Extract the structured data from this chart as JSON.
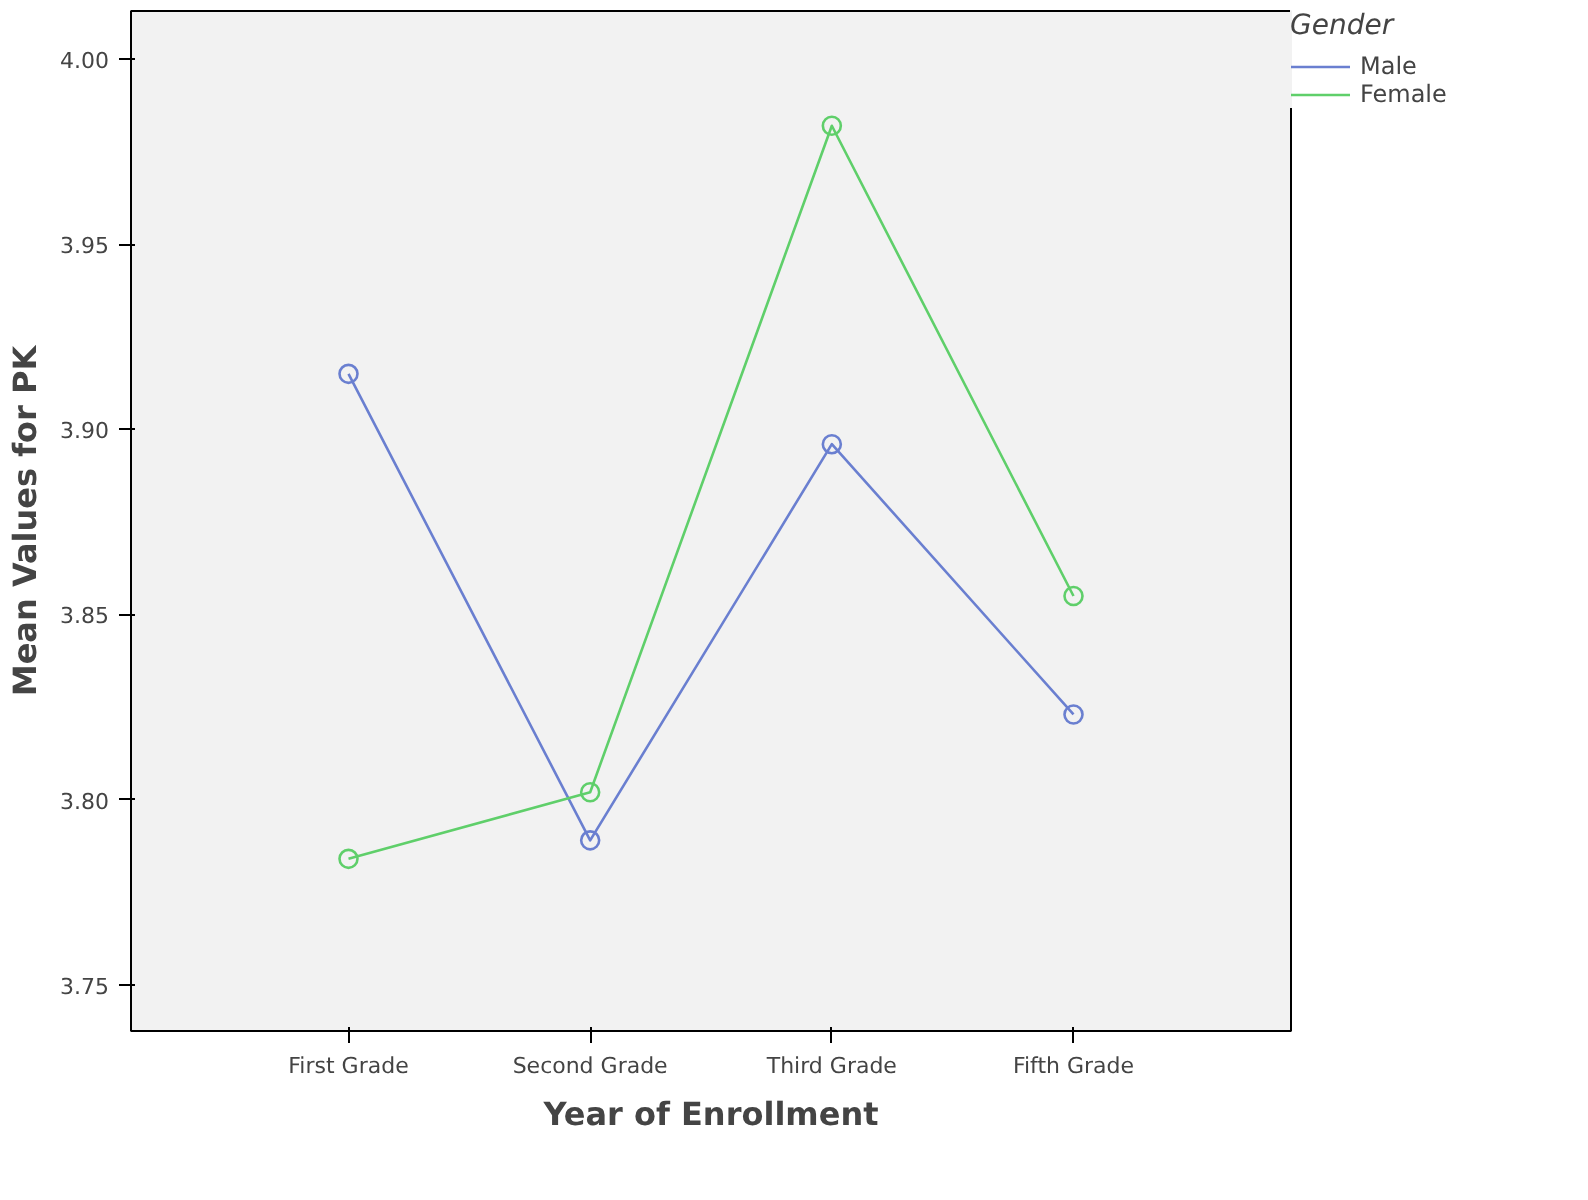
{
  "chart_data": {
    "type": "line",
    "xlabel": "Year of Enrollment",
    "ylabel": "Mean Values for PK",
    "legend_title": "Gender",
    "categories": [
      "First Grade",
      "Second Grade",
      "Third Grade",
      "Fifth Grade"
    ],
    "series": [
      {
        "name": "Male",
        "color": "#6a7fd0",
        "values": [
          3.915,
          3.789,
          3.896,
          3.823
        ]
      },
      {
        "name": "Female",
        "color": "#5fcf6a",
        "values": [
          3.784,
          3.802,
          3.982,
          3.855
        ]
      }
    ],
    "ylim": [
      3.7375,
      4.013
    ],
    "yticks": [
      3.75,
      {
        "value": 3.8,
        "label": "3.80"
      },
      3.85,
      {
        "value": 3.9,
        "label": "3.90"
      },
      3.95,
      {
        "value": 4.0,
        "label": "4.00"
      }
    ],
    "marker": "circle",
    "legend": "top right",
    "grid": false
  }
}
